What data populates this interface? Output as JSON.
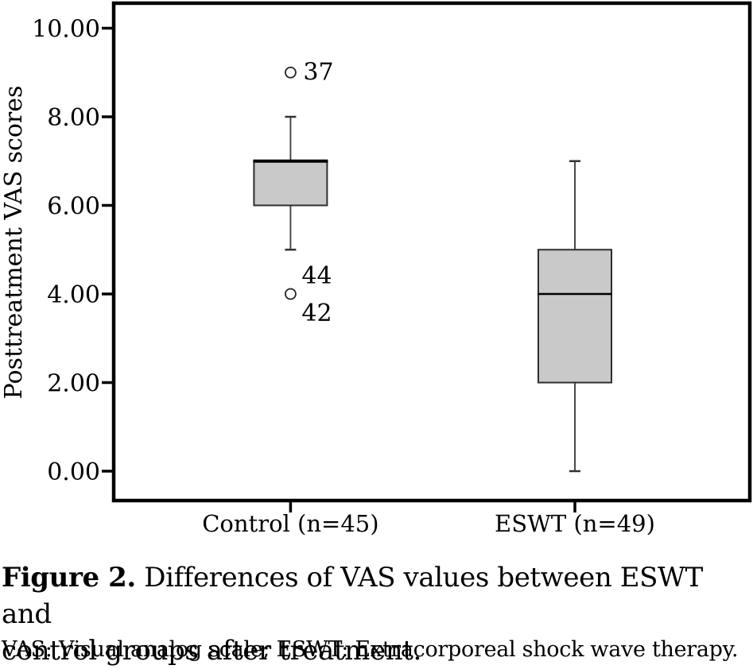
{
  "figure": {
    "caption_label": "Figure 2.",
    "caption_line1": " Differences of VAS values between ESWT and",
    "caption_line2": "control groups after treatment.",
    "footnote": "VAS: Visual analog scale; ESWT: Extracorporeal shock wave therapy."
  },
  "colors": {
    "box_fill": "#c9c9c9",
    "box_border": "#2e2e2e",
    "median": "#000000",
    "whisker": "#4a4a4a",
    "frame": "#000000",
    "outlier_stroke": "#222222"
  },
  "chart_data": {
    "type": "boxplot",
    "title": "",
    "xlabel": "",
    "ylabel": "Posttreatment VAS scores",
    "ylim": [
      0,
      10
    ],
    "yticks": [
      0,
      2,
      4,
      6,
      8,
      10
    ],
    "ytick_labels": [
      "0.00",
      "2.00",
      "4.00",
      "6.00",
      "8.00",
      "10.00"
    ],
    "grid": false,
    "legend": "none",
    "categories": [
      "Control (n=45)",
      "ESWT (n=49)"
    ],
    "series": [
      {
        "category": "Control (n=45)",
        "whisker_low": 5,
        "q1": 6,
        "median": 7,
        "q3": 7,
        "whisker_high": 8,
        "median_on_edge": true,
        "x_fraction": 0.278,
        "outliers": [
          {
            "value": 9,
            "case_labels": [
              {
                "text": "37",
                "dx": 16,
                "dy": 9
              }
            ]
          },
          {
            "value": 4,
            "case_labels": [
              {
                "text": "44",
                "dx": 14,
                "dy": -13
              },
              {
                "text": "42",
                "dx": 14,
                "dy": 34
              }
            ]
          }
        ]
      },
      {
        "category": "ESWT (n=49)",
        "whisker_low": 0,
        "q1": 2,
        "median": 4,
        "q3": 5,
        "whisker_high": 7,
        "median_on_edge": false,
        "x_fraction": 0.725,
        "outliers": []
      }
    ]
  }
}
